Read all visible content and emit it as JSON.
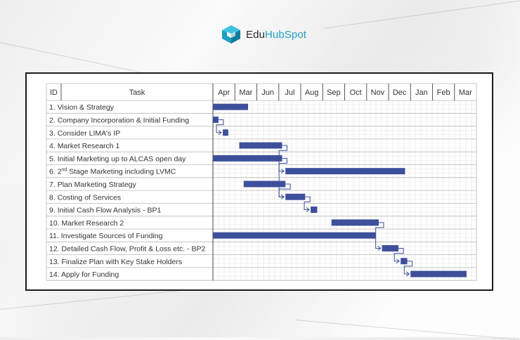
{
  "brand": {
    "name_part1": "Edu",
    "name_part2": "HubSpot",
    "icon": "hexagon-logo-icon"
  },
  "colors": {
    "bar": "#3e4f9b",
    "connector": "#3e4f9b",
    "grid": "#b8b8b8",
    "text": "#333333"
  },
  "chart_data": {
    "type": "gantt",
    "headers": {
      "id": "ID",
      "task": "Task"
    },
    "timeline": [
      "Apr",
      "Mar",
      "Jun",
      "Jul",
      "Aug",
      "Sep",
      "Oct",
      "Nov",
      "Dec",
      "Jan",
      "Feb",
      "Mar"
    ],
    "tasks": [
      {
        "id": "1.",
        "name": "Vision & Strategy",
        "start": 0.0,
        "end": 1.6
      },
      {
        "id": "2.",
        "name": "Company Incorporation & Initial Funding",
        "start": 0.0,
        "end": 0.25
      },
      {
        "id": "3.",
        "name": "Consider LIMA's IP",
        "start": 0.45,
        "end": 0.7
      },
      {
        "id": "4.",
        "name": "Market Research 1",
        "start": 1.2,
        "end": 3.15
      },
      {
        "id": "5.",
        "name": "Initial Marketing up to ALCAS open day",
        "start": 0.0,
        "end": 3.15
      },
      {
        "id": "6.",
        "name_pre": "2",
        "name_sup": "nd",
        "name": "Stage Marketing including LVMC",
        "start": 3.3,
        "end": 8.75
      },
      {
        "id": "7.",
        "name": "Plan Marketing Strategy",
        "start": 1.4,
        "end": 3.3
      },
      {
        "id": "8.",
        "name": "Costing of Services",
        "start": 3.3,
        "end": 4.2
      },
      {
        "id": "9.",
        "name": "Initial Cash Flow Analysis - BP1",
        "start": 4.45,
        "end": 4.75
      },
      {
        "id": "10.",
        "name": "Market Research 2",
        "start": 5.4,
        "end": 7.55
      },
      {
        "id": "11.",
        "name": "Investigate Sources of Funding",
        "start": 0.0,
        "end": 7.4
      },
      {
        "id": "12.",
        "name": "Detailed Cash Flow, Profit & Loss etc. - BP2",
        "start": 7.7,
        "end": 8.45
      },
      {
        "id": "13.",
        "name": "Finalize Plan with Key Stake Holders",
        "start": 8.55,
        "end": 8.85
      },
      {
        "id": "14.",
        "name": "Apply for Funding",
        "start": 9.0,
        "end": 11.55
      }
    ],
    "dependencies": [
      [
        1,
        2
      ],
      [
        3,
        5
      ],
      [
        4,
        7
      ],
      [
        6,
        7
      ],
      [
        7,
        8
      ],
      [
        9,
        11
      ],
      [
        11,
        12
      ],
      [
        12,
        13
      ]
    ]
  }
}
